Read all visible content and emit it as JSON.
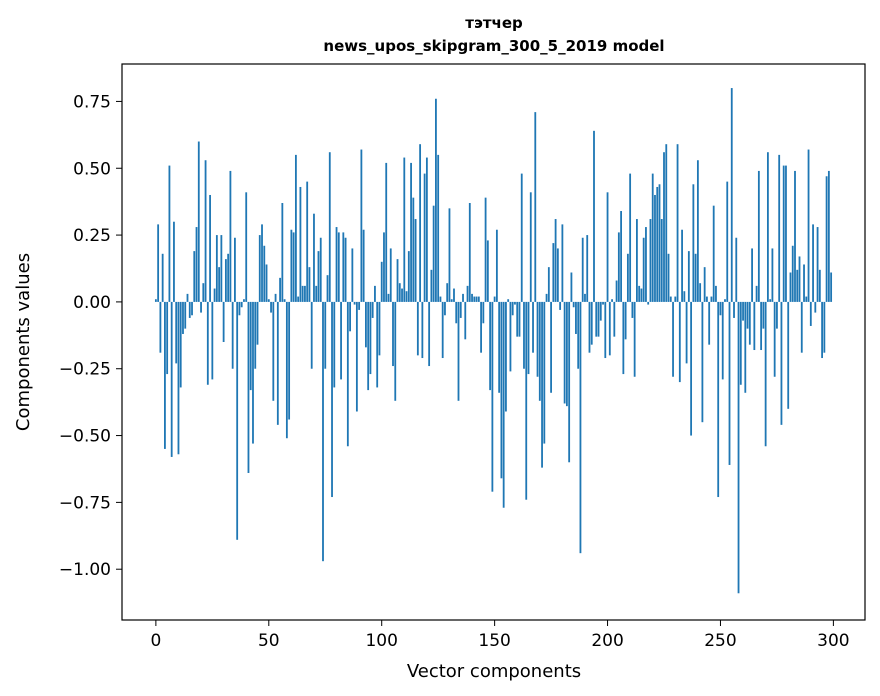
{
  "chart_data": {
    "type": "bar",
    "title_line1": "тэтчер",
    "title_line2": "news_upos_skipgram_300_5_2019 model",
    "xlabel": "Vector components",
    "ylabel": "Components values",
    "xlim": [
      -15,
      314
    ],
    "ylim": [
      -1.19,
      0.89
    ],
    "x_ticks": [
      0,
      50,
      100,
      150,
      200,
      250,
      300
    ],
    "x_tick_labels": [
      "0",
      "50",
      "100",
      "150",
      "200",
      "250",
      "300"
    ],
    "y_ticks": [
      0.75,
      0.5,
      0.25,
      0.0,
      -0.25,
      -0.5,
      -0.75,
      -1.0
    ],
    "y_tick_labels": [
      "0.75",
      "0.50",
      "0.25",
      "0.00",
      "−0.25",
      "−0.50",
      "−0.75",
      "−1.00"
    ],
    "bar_color": "#1f77b4",
    "grid": false,
    "values": [
      0.01,
      0.29,
      -0.19,
      0.18,
      -0.55,
      -0.27,
      0.51,
      -0.58,
      0.3,
      -0.23,
      -0.57,
      -0.32,
      -0.12,
      -0.1,
      0.03,
      -0.06,
      -0.05,
      0.19,
      0.28,
      0.6,
      -0.04,
      0.07,
      0.53,
      -0.31,
      0.4,
      -0.29,
      0.05,
      0.25,
      0.13,
      0.25,
      -0.15,
      0.16,
      0.18,
      0.49,
      -0.25,
      0.24,
      -0.89,
      -0.05,
      -0.02,
      0.01,
      0.41,
      -0.64,
      -0.33,
      -0.53,
      -0.25,
      -0.16,
      0.25,
      0.29,
      0.21,
      0.14,
      0.01,
      -0.04,
      -0.37,
      0.03,
      -0.46,
      0.09,
      0.37,
      0.01,
      -0.51,
      -0.44,
      0.27,
      0.26,
      0.55,
      0.02,
      0.43,
      0.06,
      0.06,
      0.45,
      0.13,
      -0.25,
      0.33,
      0.06,
      0.19,
      0.24,
      -0.97,
      -0.25,
      0.1,
      0.56,
      -0.73,
      -0.32,
      0.28,
      0.26,
      -0.29,
      0.26,
      0.24,
      -0.54,
      -0.11,
      0.2,
      -0.01,
      -0.41,
      -0.03,
      0.57,
      0.27,
      -0.17,
      -0.33,
      -0.27,
      -0.06,
      0.06,
      -0.32,
      -0.2,
      0.15,
      0.26,
      0.52,
      0.03,
      0.2,
      -0.24,
      -0.37,
      0.16,
      0.07,
      0.05,
      0.54,
      0.04,
      0.19,
      0.52,
      0.39,
      0.31,
      -0.2,
      0.59,
      -0.21,
      0.48,
      0.54,
      -0.24,
      0.12,
      0.36,
      0.76,
      0.55,
      0.02,
      -0.21,
      -0.05,
      0.07,
      0.35,
      0.01,
      0.05,
      -0.08,
      -0.37,
      -0.06,
      0.03,
      -0.14,
      0.06,
      0.37,
      0.03,
      0.02,
      0.02,
      0.02,
      -0.19,
      -0.08,
      0.39,
      0.23,
      -0.33,
      -0.71,
      0.02,
      0.27,
      -0.34,
      -0.66,
      -0.77,
      -0.41,
      0.01,
      -0.26,
      -0.05,
      -0.01,
      -0.13,
      -0.13,
      0.48,
      -0.25,
      -0.74,
      -0.27,
      0.41,
      -0.19,
      0.71,
      -0.28,
      -0.37,
      -0.62,
      -0.53,
      0.03,
      0.13,
      -0.34,
      0.22,
      0.31,
      0.2,
      -0.03,
      0.29,
      -0.38,
      -0.39,
      -0.6,
      0.11,
      -0.02,
      -0.12,
      -0.25,
      -0.94,
      0.24,
      0.03,
      0.25,
      -0.19,
      -0.16,
      0.64,
      -0.13,
      -0.13,
      -0.07,
      -0.01,
      -0.21,
      0.41,
      -0.2,
      0.01,
      -0.13,
      0.08,
      0.26,
      0.34,
      -0.27,
      -0.14,
      0.18,
      0.48,
      -0.06,
      -0.28,
      0.31,
      0.06,
      0.05,
      0.24,
      0.28,
      -0.01,
      0.31,
      0.48,
      0.4,
      0.43,
      0.44,
      0.31,
      0.56,
      0.59,
      0.18,
      0.02,
      -0.28,
      0.02,
      0.59,
      -0.3,
      0.27,
      0.04,
      -0.23,
      0.19,
      -0.5,
      0.44,
      0.18,
      0.53,
      0.07,
      -0.45,
      0.13,
      0.02,
      -0.16,
      0.02,
      0.36,
      0.06,
      -0.73,
      -0.05,
      -0.29,
      0.01,
      0.45,
      -0.61,
      0.8,
      -0.06,
      0.24,
      -1.09,
      -0.31,
      -0.07,
      -0.34,
      -0.1,
      -0.16,
      0.2,
      -0.18,
      0.06,
      0.49,
      -0.18,
      -0.1,
      -0.54,
      0.56,
      0.01,
      0.2,
      -0.28,
      -0.1,
      0.55,
      -0.46,
      0.51,
      0.51,
      -0.4,
      0.11,
      0.21,
      0.49,
      0.12,
      0.17,
      -0.19,
      0.14,
      0.02,
      0.57,
      -0.09,
      0.29,
      -0.04,
      0.28,
      0.12,
      -0.21,
      -0.19,
      0.47,
      0.49,
      0.11
    ]
  }
}
